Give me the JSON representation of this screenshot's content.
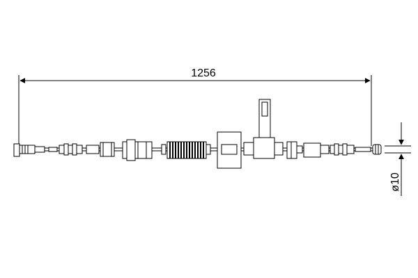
{
  "dimensions": {
    "length": "1256",
    "diameter": "ø10"
  },
  "colors": {
    "line": "#000000",
    "background": "#ffffff"
  }
}
